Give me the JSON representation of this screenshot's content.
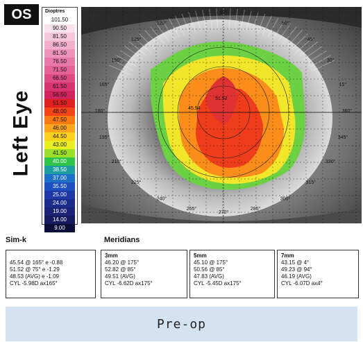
{
  "header": {
    "eye_code": "OS",
    "eye_side": "Left Eye"
  },
  "scale": {
    "title": "Dioptres",
    "values": [
      "101.50",
      "90.50",
      "81.50",
      "86.50",
      "81.50",
      "76.50",
      "71.50",
      "66.50",
      "61.50",
      "56.50",
      "51.50",
      "48.00",
      "47.50",
      "46.00",
      "44.50",
      "43.00",
      "41.50",
      "40.00",
      "38.50",
      "37.00",
      "35.50",
      "25.00",
      "24.00",
      "19.00",
      "14.00",
      "9.00"
    ],
    "colors": [
      "#ffffff",
      "#fbe2ec",
      "#f6c6d9",
      "#f3aecb",
      "#ee92b9",
      "#e97aa8",
      "#e46296",
      "#dd4b83",
      "#d63570",
      "#cf255c",
      "#e0201e",
      "#f4451a",
      "#fa7a12",
      "#fda51c",
      "#fcd21c",
      "#e8ee22",
      "#9bdf28",
      "#2fc34a",
      "#1e9ea0",
      "#1c70c8",
      "#1d4fc0",
      "#1e39a6",
      "#1c2c8c",
      "#1a2376",
      "#161a5e",
      "#0c0e3a"
    ],
    "text_colors": [
      "#111",
      "#111",
      "#111",
      "#111",
      "#111",
      "#111",
      "#111",
      "#111",
      "#111",
      "#111",
      "#111",
      "#111",
      "#111",
      "#111",
      "#111",
      "#111",
      "#111",
      "#fff",
      "#fff",
      "#fff",
      "#fff",
      "#fff",
      "#fff",
      "#fff",
      "#fff",
      "#fff"
    ]
  },
  "map": {
    "angle_labels": [
      "120°",
      "90°",
      "60°",
      "135°",
      "45°",
      "150°",
      "30°",
      "165°",
      "15°",
      "360°",
      "180°",
      "345°",
      "195°",
      "330°",
      "210°",
      "315°",
      "225°",
      "300°",
      "240°",
      "285°",
      "255°",
      "270°"
    ],
    "point_labels": [
      "51.52",
      "45.54"
    ]
  },
  "simk": {
    "title": "Sim-k",
    "lines": [
      "45.54 @ 165° e -0.88",
      "51.52 @ 75° e -1.29",
      "48.53 (AVG) e -1.09",
      "CYL -5.98D ax165°"
    ]
  },
  "meridians": {
    "title": "Meridians",
    "zones": [
      {
        "label": "3mm",
        "lines": [
          "46.20 @ 175°",
          "52.82 @ 85°",
          "49.51 (AVG)",
          "CYL -6.62D ax175°"
        ]
      },
      {
        "label": "5mm",
        "lines": [
          "45.10 @ 175°",
          "50.56 @ 85°",
          "47.83 (AVG)",
          "CYL -5.45D ax175°"
        ]
      },
      {
        "label": "7mm",
        "lines": [
          "43.15 @ 4°",
          "49.23 @ 94°",
          "46.19 (AVG)",
          "CYL -6.07D ax4°"
        ]
      }
    ]
  },
  "footer": {
    "caption": "Pre-op"
  }
}
